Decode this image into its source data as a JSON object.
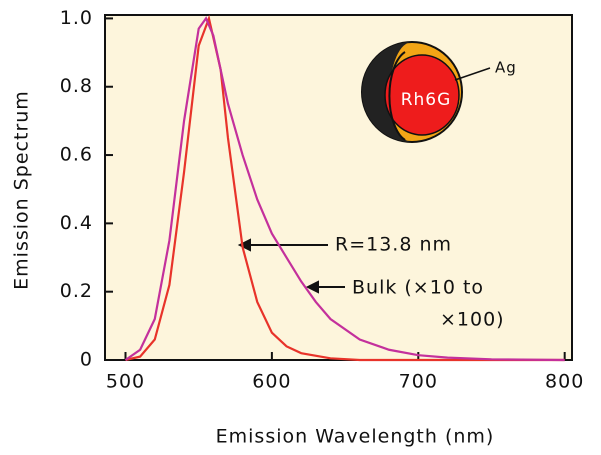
{
  "chart_data": {
    "type": "line",
    "xlabel": "Emission Wavelength (nm)",
    "ylabel": "Emission Spectrum",
    "xlim": [
      486,
      805
    ],
    "xticks": [
      500,
      600,
      700,
      800
    ],
    "ylim": [
      0,
      1.01
    ],
    "yticks": [
      0,
      0.2,
      0.4,
      0.6,
      0.8,
      {
        "value": 1,
        "label": "1.0"
      }
    ],
    "background": "#fdf5dc",
    "series": [
      {
        "name": "R=13.8 nm",
        "color": "#e8332a",
        "x": [
          500,
          510,
          520,
          530,
          540,
          550,
          557,
          565,
          570,
          580,
          590,
          600,
          610,
          620,
          640,
          660,
          800
        ],
        "values": [
          0,
          0.01,
          0.06,
          0.22,
          0.55,
          0.92,
          1.0,
          0.85,
          0.65,
          0.33,
          0.17,
          0.08,
          0.04,
          0.02,
          0.005,
          0,
          0
        ]
      },
      {
        "name": "Bulk (×10 to ×100)",
        "color": "#c4309c",
        "x": [
          500,
          510,
          520,
          530,
          540,
          550,
          555,
          560,
          570,
          580,
          590,
          600,
          610,
          620,
          630,
          640,
          660,
          680,
          700,
          720,
          750,
          800
        ],
        "values": [
          0,
          0.03,
          0.12,
          0.35,
          0.7,
          0.97,
          1.0,
          0.95,
          0.75,
          0.6,
          0.47,
          0.37,
          0.3,
          0.23,
          0.17,
          0.12,
          0.06,
          0.03,
          0.014,
          0.007,
          0.002,
          0
        ]
      }
    ],
    "annotations": [
      "R=13.8 nm",
      "Bulk (×10 to",
      "×100)",
      "Rh6G",
      "Ag"
    ]
  }
}
